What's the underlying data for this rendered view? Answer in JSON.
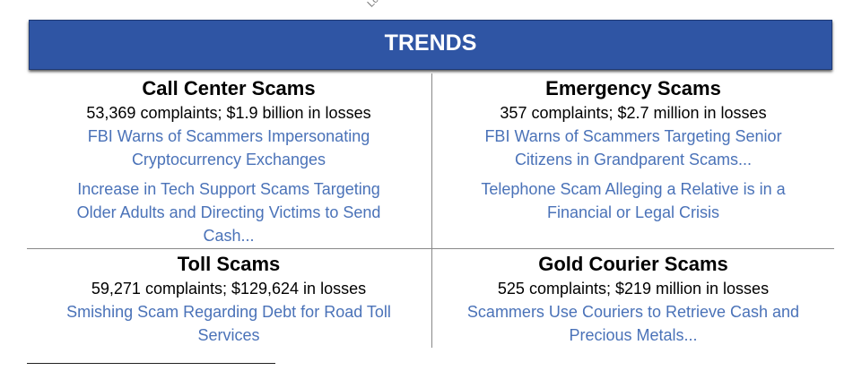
{
  "cut_off_text": "Lo",
  "header": {
    "title": "TRENDS"
  },
  "sections": [
    {
      "title": "Call Center Scams",
      "stats": "53,369 complaints; $1.9 billion in losses",
      "links": [
        [
          "FBI Warns of Scammers Impersonating",
          "Cryptocurrency Exchanges"
        ],
        [
          "Increase in Tech Support Scams Targeting",
          "Older Adults and Directing Victims to Send",
          "Cash..."
        ]
      ]
    },
    {
      "title": "Emergency Scams",
      "stats": "357 complaints; $2.7 million in losses",
      "links": [
        [
          "FBI Warns of Scammers Targeting Senior",
          "Citizens in Grandparent Scams..."
        ],
        [
          "Telephone Scam Alleging a Relative is in a",
          "Financial or Legal Crisis"
        ]
      ]
    },
    {
      "title": "Toll Scams",
      "stats": "59,271 complaints; $129,624 in losses",
      "links": [
        [
          "Smishing Scam Regarding Debt for Road Toll",
          "Services"
        ]
      ]
    },
    {
      "title": "Gold Courier Scams",
      "stats": "525 complaints; $219 million in losses",
      "links": [
        [
          "Scammers Use Couriers to Retrieve Cash and",
          "Precious Metals..."
        ]
      ]
    }
  ]
}
